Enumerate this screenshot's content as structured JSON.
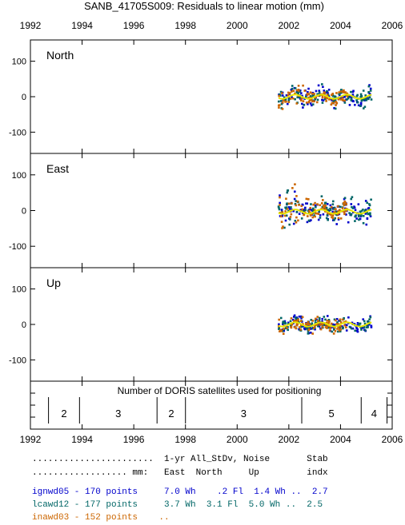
{
  "chart_data": {
    "type": "scatter",
    "title": "SANB_41705S009: Residuals to linear motion (mm)",
    "x_ticks": [
      "1992",
      "1994",
      "1996",
      "1998",
      "2000",
      "2002",
      "2004",
      "2006"
    ],
    "xlim": [
      1992,
      2006
    ],
    "panels": [
      {
        "label": "North",
        "ylim": [
          -160,
          160
        ],
        "y_ticks": [
          "100",
          "0",
          "-100"
        ]
      },
      {
        "label": "East",
        "ylim": [
          -160,
          160
        ],
        "y_ticks": [
          "100",
          "0",
          "-100"
        ]
      },
      {
        "label": "Up",
        "ylim": [
          -160,
          160
        ],
        "y_ticks": [
          "100",
          "0",
          "-100"
        ]
      }
    ],
    "series": [
      {
        "name": "ignwd05",
        "color": "#0000cc",
        "points": 170,
        "start": 2001.6,
        "end": 2005.2
      },
      {
        "name": "lcawd12",
        "color": "#006666",
        "points": 177,
        "start": 2001.6,
        "end": 2005.2
      },
      {
        "name": "inawd03",
        "color": "#cc6600",
        "points": 152,
        "start": 2001.6,
        "end": 2004.3
      }
    ],
    "smooth_color": "#e6e600",
    "satellites": {
      "title": "Number of DORIS satellites used for positioning",
      "segments": [
        {
          "from": 1992.7,
          "to": 1993.9,
          "count": "2"
        },
        {
          "from": 1993.9,
          "to": 1996.9,
          "count": "3"
        },
        {
          "from": 1996.9,
          "to": 1998.0,
          "count": "2"
        },
        {
          "from": 1998.0,
          "to": 2002.5,
          "count": "3"
        },
        {
          "from": 2002.5,
          "to": 2004.8,
          "count": "5"
        },
        {
          "from": 2004.8,
          "to": 2005.8,
          "count": "4"
        }
      ]
    }
  },
  "table": {
    "header1": ".......................  1-yr All_StDv, Noise       Stab",
    "header2": ".................. mm:   East  North     Up         indx",
    "rows": [
      {
        "text": "ignwd05 - 170 points     7.0 Wh    .2 Fl  1.4 Wh ..  2.7",
        "color": "#0000cc"
      },
      {
        "text": "lcawd12 - 177 points     3.7 Wh  3.1 Fl  5.0 Wh ..  2.5",
        "color": "#006666"
      },
      {
        "text": "inawd03 - 152 points    ..",
        "color": "#cc6600"
      }
    ]
  }
}
